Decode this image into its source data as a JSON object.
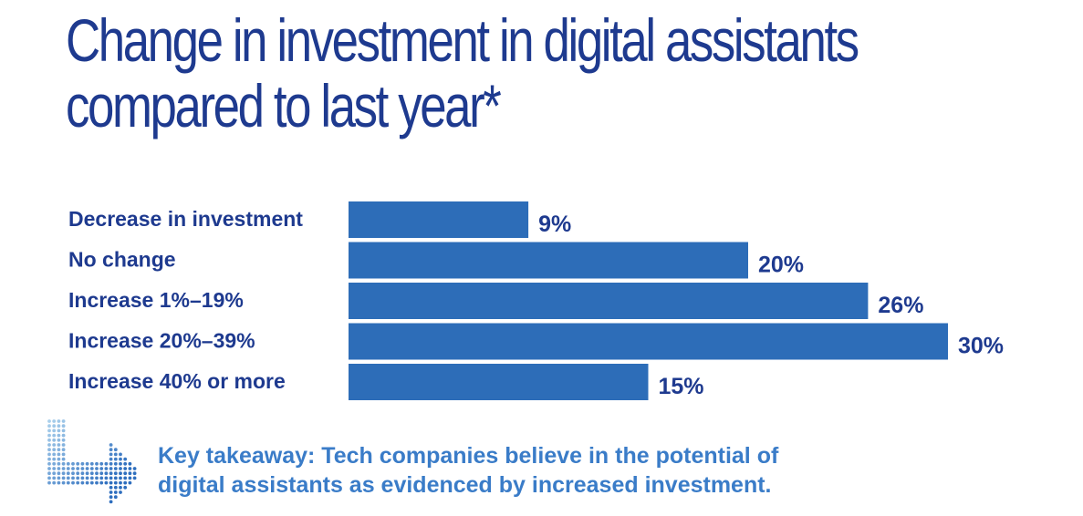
{
  "title_lines": [
    "Change in investment in digital assistants",
    "compared to last year*"
  ],
  "takeaway_lines": [
    "Key takeaway: Tech companies believe in the potential of",
    "digital assistants as evidenced by increased investment."
  ],
  "takeaway_icon": "dotted-arrow-icon",
  "colors": {
    "bar": "#2d6db8",
    "title": "#1e3a8f",
    "labels": "#1e3a8f",
    "takeaway": "#3a7cc8"
  },
  "chart_data": {
    "type": "bar",
    "orientation": "horizontal",
    "title": "Change in investment in digital assistants compared to last year*",
    "categories": [
      "Decrease in investment",
      "No change",
      "Increase 1%–19%",
      "Increase 20%–39%",
      "Increase 40% or more"
    ],
    "values": [
      9,
      20,
      26,
      30,
      15
    ],
    "value_labels": [
      "9%",
      "20%",
      "26%",
      "30%",
      "15%"
    ],
    "unit": "%",
    "xlabel": "",
    "ylabel": "",
    "grid": false,
    "legend": "none"
  }
}
